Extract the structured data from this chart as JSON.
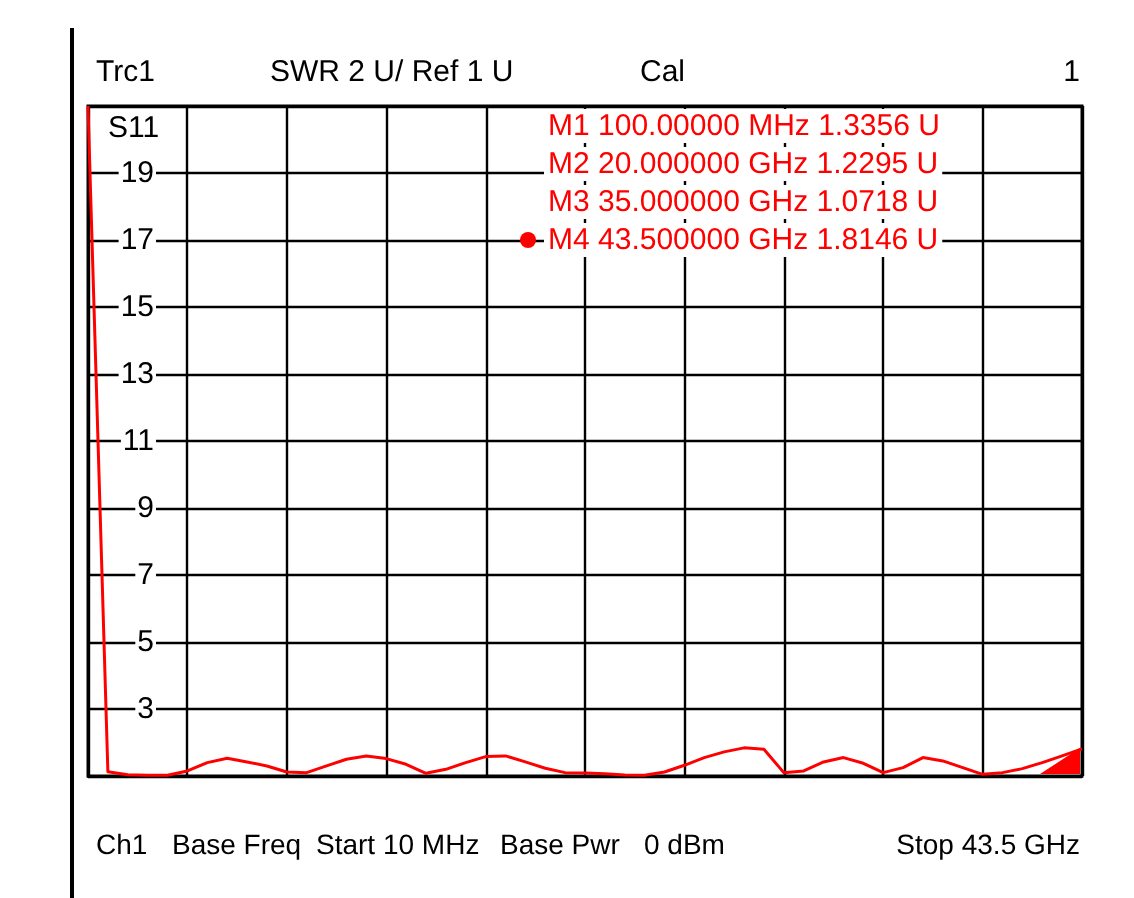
{
  "chart_data": {
    "type": "line",
    "title": "Trc1",
    "subtitle": "SWR 2 U/ Ref 1 U",
    "annotations": [
      "Cal",
      "1",
      "M1 100.00000 MHz 1.3356 U",
      "M2 20.000000 GHz 1.2295 U",
      "M3 35.000000 GHz 1.0718 U",
      "M4 43.500000 GHz 1.8146 U",
      "Ch1",
      "Base Freq",
      "Start 10 MHz",
      "Base Pwr",
      "0 dBm",
      "Stop 43.5 GHz"
    ],
    "categories": [
      null,
      null,
      null,
      null,
      null,
      null,
      null,
      null,
      null,
      null,
      null,
      null,
      null,
      null,
      null,
      null,
      null,
      null,
      null,
      null,
      null,
      null,
      null,
      null,
      null,
      null,
      null,
      null,
      null,
      null,
      null,
      null,
      null,
      null,
      null,
      null,
      null,
      null,
      null,
      null,
      null,
      null,
      null,
      null,
      null,
      null,
      null,
      null,
      null,
      null,
      null
    ],
    "series": [
      {
        "name": "S11",
        "color": "#ff0000",
        "values": [
          21,
          1.13,
          1.04,
          1.02,
          1.02,
          1.15,
          1.4,
          1.53,
          1.42,
          1.3,
          1.12,
          1.1,
          1.3,
          1.5,
          1.6,
          1.52,
          1.35,
          1.08,
          1.2,
          1.4,
          1.58,
          1.6,
          1.42,
          1.23,
          1.1,
          1.09,
          1.07,
          1.03,
          1.02,
          1.12,
          1.32,
          1.55,
          1.72,
          1.84,
          1.8,
          1.1,
          1.15,
          1.42,
          1.55,
          1.38,
          1.1,
          1.25,
          1.55,
          1.45,
          1.25,
          1.05,
          1.1,
          1.22,
          1.4,
          1.6,
          1.81
        ]
      }
    ],
    "ylim": [
      1,
      21
    ],
    "yticks": [
      {
        "value": 1,
        "label": null
      },
      3,
      5,
      7,
      9,
      11,
      13,
      15,
      17,
      19,
      {
        "value": 21,
        "label": null
      }
    ],
    "tick_labels": "y",
    "grid": true,
    "legend": false,
    "marker": "none"
  }
}
